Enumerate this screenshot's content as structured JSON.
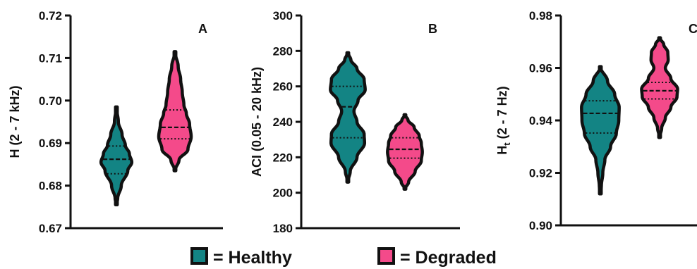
{
  "colors": {
    "healthy": "#138484",
    "degraded": "#f44a8a",
    "outline": "#111111"
  },
  "legend": {
    "items": [
      {
        "key": "healthy",
        "label": "= Healthy"
      },
      {
        "key": "degraded",
        "label": "= Degraded"
      }
    ]
  },
  "chart_data": [
    {
      "type": "violin",
      "panel_label": "A",
      "ylabel": "H (2 - 7 kHz)",
      "ylim": [
        0.67,
        0.72
      ],
      "yticks": [
        0.67,
        0.68,
        0.69,
        0.7,
        0.71,
        0.72
      ],
      "ytick_labels": [
        "0.67",
        "0.68",
        "0.69",
        "0.70",
        "0.71",
        "0.72"
      ],
      "series": [
        {
          "group": "healthy",
          "profile": [
            [
              0.6755,
              0
            ],
            [
              0.677,
              0.08
            ],
            [
              0.68,
              0.3
            ],
            [
              0.6835,
              0.7
            ],
            [
              0.6855,
              0.95
            ],
            [
              0.6875,
              0.8
            ],
            [
              0.6895,
              0.55
            ],
            [
              0.692,
              0.35
            ],
            [
              0.695,
              0.12
            ],
            [
              0.6985,
              0
            ]
          ],
          "median": 0.6862,
          "q1": 0.6828,
          "q3": 0.6893
        },
        {
          "group": "degraded",
          "profile": [
            [
              0.6835,
              0
            ],
            [
              0.686,
              0.25
            ],
            [
              0.6885,
              0.8
            ],
            [
              0.6915,
              1.0
            ],
            [
              0.6945,
              0.9
            ],
            [
              0.697,
              0.7
            ],
            [
              0.699,
              0.55
            ],
            [
              0.702,
              0.45
            ],
            [
              0.705,
              0.35
            ],
            [
              0.708,
              0.2
            ],
            [
              0.7115,
              0
            ]
          ],
          "median": 0.6937,
          "q1": 0.691,
          "q3": 0.6978
        }
      ]
    },
    {
      "type": "violin",
      "panel_label": "B",
      "ylabel": "ACI (0.05 - 20 kHz)",
      "ylim": [
        180,
        300
      ],
      "yticks": [
        180,
        200,
        220,
        240,
        260,
        280,
        300
      ],
      "ytick_labels": [
        "180",
        "200",
        "220",
        "240",
        "260",
        "280",
        "300"
      ],
      "series": [
        {
          "group": "healthy",
          "profile": [
            [
              206,
              0
            ],
            [
              212,
              0.12
            ],
            [
              220,
              0.45
            ],
            [
              228,
              0.82
            ],
            [
              233,
              0.8
            ],
            [
              240,
              0.45
            ],
            [
              246,
              0.3
            ],
            [
              252,
              0.5
            ],
            [
              258,
              0.85
            ],
            [
              264,
              0.8
            ],
            [
              270,
              0.45
            ],
            [
              275,
              0.15
            ],
            [
              279,
              0
            ]
          ],
          "median": 248.5,
          "q1": 231,
          "q3": 260
        },
        {
          "group": "degraded",
          "profile": [
            [
              202,
              0
            ],
            [
              206,
              0.18
            ],
            [
              212,
              0.5
            ],
            [
              218,
              0.8
            ],
            [
              223,
              0.85
            ],
            [
              228,
              0.8
            ],
            [
              232,
              0.7
            ],
            [
              237,
              0.45
            ],
            [
              241,
              0.15
            ],
            [
              244,
              0
            ]
          ],
          "median": 224.5,
          "q1": 219.5,
          "q3": 231
        }
      ]
    },
    {
      "type": "violin",
      "panel_label": "C",
      "ylabel": "Ht (2 - 7 Hz)",
      "ylabel_main": "H",
      "ylabel_sub": "t",
      "ylabel_rest": " (2 - 7 Hz)",
      "ylim": [
        0.9,
        0.98
      ],
      "yticks": [
        0.9,
        0.92,
        0.94,
        0.96,
        0.98
      ],
      "ytick_labels": [
        "0.90",
        "0.92",
        "0.94",
        "0.96",
        "0.98"
      ],
      "series": [
        {
          "group": "healthy",
          "profile": [
            [
              0.912,
              0
            ],
            [
              0.915,
              0.05
            ],
            [
              0.92,
              0.12
            ],
            [
              0.925,
              0.22
            ],
            [
              0.93,
              0.5
            ],
            [
              0.935,
              0.78
            ],
            [
              0.94,
              0.9
            ],
            [
              0.945,
              0.92
            ],
            [
              0.95,
              0.7
            ],
            [
              0.955,
              0.35
            ],
            [
              0.9605,
              0
            ]
          ],
          "median": 0.9427,
          "q1": 0.9352,
          "q3": 0.9475
        },
        {
          "group": "degraded",
          "profile": [
            [
              0.9335,
              0
            ],
            [
              0.937,
              0.1
            ],
            [
              0.941,
              0.28
            ],
            [
              0.945,
              0.55
            ],
            [
              0.949,
              0.85
            ],
            [
              0.952,
              0.88
            ],
            [
              0.956,
              0.55
            ],
            [
              0.96,
              0.28
            ],
            [
              0.963,
              0.42
            ],
            [
              0.966,
              0.4
            ],
            [
              0.969,
              0.2
            ],
            [
              0.9715,
              0
            ]
          ],
          "median": 0.9513,
          "q1": 0.9482,
          "q3": 0.9545
        }
      ]
    }
  ]
}
